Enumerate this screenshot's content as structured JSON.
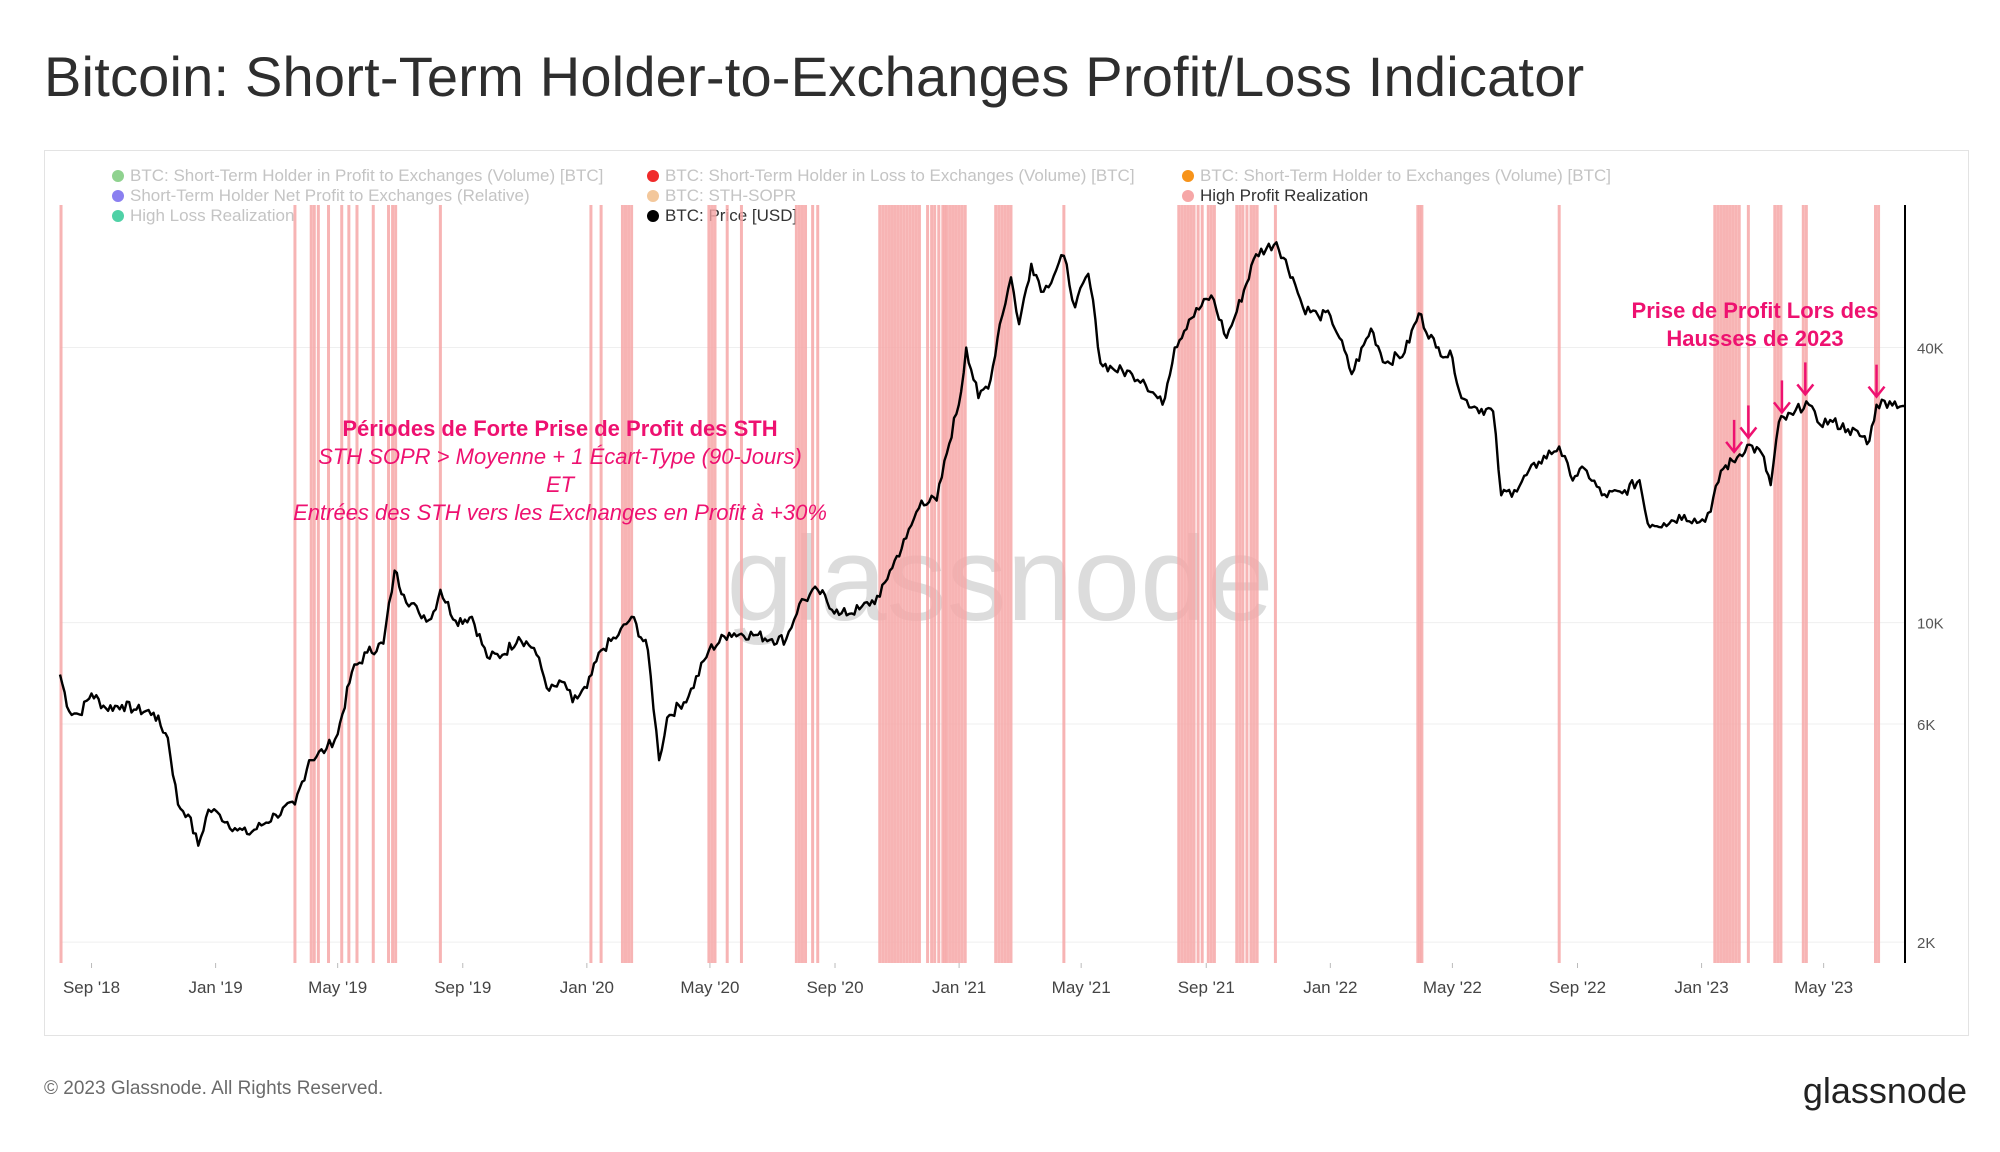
{
  "title": "Bitcoin: Short-Term Holder-to-Exchanges Profit/Loss Indicator",
  "footer": "© 2023 Glassnode. All Rights Reserved.",
  "brand": "glassnode",
  "watermark": "glassnode",
  "legend": [
    {
      "label": "BTC: Short-Term Holder in Profit to Exchanges (Volume) [BTC]",
      "color": "#8fd28f",
      "active": false
    },
    {
      "label": "BTC: Short-Term Holder in Loss to Exchanges (Volume) [BTC]",
      "color": "#f02a2a",
      "active": false
    },
    {
      "label": "BTC: Short-Term Holder to Exchanges (Volume) [BTC]",
      "color": "#f7931a",
      "active": false
    },
    {
      "label": "Short-Term Holder Net Profit to Exchanges (Relative)",
      "color": "#8a7ff0",
      "active": false
    },
    {
      "label": "BTC: STH-SOPR",
      "color": "#f3c79b",
      "active": false
    },
    {
      "label": "High Profit Realization",
      "color": "#f6a7a7",
      "active": true
    },
    {
      "label": "High Loss Realization",
      "color": "#4fd1a6",
      "active": false
    },
    {
      "label": "BTC: Price [USD]",
      "color": "#000000",
      "active": true
    }
  ],
  "annotations": {
    "left": {
      "title": "Périodes de Forte Prise de Profit des STH",
      "line1": "STH SOPR > Moyenne + 1 Écart-Type (90-Jours)",
      "line2": "ET",
      "line3": "Entrées des STH vers les Exchanges en Profit à +30%"
    },
    "right": {
      "line1": "Prise de Profit Lors des",
      "line2": "Hausses de 2023"
    }
  },
  "chart_data": {
    "type": "line",
    "x_range": [
      "2018-08-01",
      "2023-07-20"
    ],
    "x_ticks": [
      "Sep '18",
      "Jan '19",
      "May '19",
      "Sep '19",
      "Jan '20",
      "May '20",
      "Sep '20",
      "Jan '21",
      "May '21",
      "Sep '21",
      "Jan '22",
      "May '22",
      "Sep '22",
      "Jan '23",
      "May '23"
    ],
    "x_tick_dates": [
      "2018-09-01",
      "2019-01-01",
      "2019-05-01",
      "2019-09-01",
      "2020-01-01",
      "2020-05-01",
      "2020-09-01",
      "2021-01-01",
      "2021-05-01",
      "2021-09-01",
      "2022-01-01",
      "2022-05-01",
      "2022-09-01",
      "2023-01-01",
      "2023-05-01"
    ],
    "y_scale": "log",
    "y_range": [
      1800,
      80000
    ],
    "y_ticks": [
      {
        "value": 2000,
        "label": "2K"
      },
      {
        "value": 6000,
        "label": "6K"
      },
      {
        "value": 10000,
        "label": "10K"
      },
      {
        "value": 40000,
        "label": "40K"
      }
    ],
    "series": [
      {
        "name": "BTC: Price [USD]",
        "color": "#000000",
        "points": [
          [
            "2018-08-01",
            7700
          ],
          [
            "2018-08-10",
            6400
          ],
          [
            "2018-08-20",
            6300
          ],
          [
            "2018-09-01",
            7000
          ],
          [
            "2018-09-15",
            6500
          ],
          [
            "2018-10-01",
            6600
          ],
          [
            "2018-10-15",
            6450
          ],
          [
            "2018-11-01",
            6350
          ],
          [
            "2018-11-15",
            5600
          ],
          [
            "2018-11-25",
            4000
          ],
          [
            "2018-12-05",
            3800
          ],
          [
            "2018-12-15",
            3250
          ],
          [
            "2018-12-25",
            3900
          ],
          [
            "2019-01-05",
            3800
          ],
          [
            "2019-01-20",
            3550
          ],
          [
            "2019-02-01",
            3450
          ],
          [
            "2019-02-15",
            3600
          ],
          [
            "2019-03-01",
            3800
          ],
          [
            "2019-03-20",
            4000
          ],
          [
            "2019-04-03",
            5000
          ],
          [
            "2019-04-20",
            5300
          ],
          [
            "2019-05-01",
            5700
          ],
          [
            "2019-05-15",
            7800
          ],
          [
            "2019-05-30",
            8600
          ],
          [
            "2019-06-15",
            9000
          ],
          [
            "2019-06-26",
            13000
          ],
          [
            "2019-07-05",
            11500
          ],
          [
            "2019-07-20",
            10500
          ],
          [
            "2019-08-01",
            10200
          ],
          [
            "2019-08-10",
            11800
          ],
          [
            "2019-08-25",
            10100
          ],
          [
            "2019-09-10",
            10300
          ],
          [
            "2019-09-25",
            8400
          ],
          [
            "2019-10-10",
            8500
          ],
          [
            "2019-10-26",
            9300
          ],
          [
            "2019-11-10",
            8800
          ],
          [
            "2019-11-25",
            7100
          ],
          [
            "2019-12-10",
            7400
          ],
          [
            "2019-12-18",
            6700
          ],
          [
            "2020-01-01",
            7200
          ],
          [
            "2020-01-15",
            8700
          ],
          [
            "2020-02-01",
            9400
          ],
          [
            "2020-02-14",
            10300
          ],
          [
            "2020-03-01",
            8700
          ],
          [
            "2020-03-12",
            5000
          ],
          [
            "2020-03-20",
            6200
          ],
          [
            "2020-04-10",
            6900
          ],
          [
            "2020-04-30",
            8700
          ],
          [
            "2020-05-20",
            9500
          ],
          [
            "2020-06-15",
            9400
          ],
          [
            "2020-07-01",
            9200
          ],
          [
            "2020-07-15",
            9200
          ],
          [
            "2020-07-28",
            11000
          ],
          [
            "2020-08-15",
            11800
          ],
          [
            "2020-09-05",
            10400
          ],
          [
            "2020-09-25",
            10700
          ],
          [
            "2020-10-15",
            11400
          ],
          [
            "2020-10-25",
            13000
          ],
          [
            "2020-11-10",
            15300
          ],
          [
            "2020-11-25",
            18500
          ],
          [
            "2020-12-10",
            18500
          ],
          [
            "2020-12-20",
            23500
          ],
          [
            "2021-01-03",
            32000
          ],
          [
            "2021-01-08",
            40000
          ],
          [
            "2021-01-20",
            31000
          ],
          [
            "2021-02-01",
            34000
          ],
          [
            "2021-02-10",
            45000
          ],
          [
            "2021-02-21",
            57000
          ],
          [
            "2021-03-01",
            45000
          ],
          [
            "2021-03-13",
            61000
          ],
          [
            "2021-03-25",
            53000
          ],
          [
            "2021-04-14",
            63500
          ],
          [
            "2021-04-25",
            49000
          ],
          [
            "2021-05-08",
            58000
          ],
          [
            "2021-05-15",
            46000
          ],
          [
            "2021-05-20",
            37000
          ],
          [
            "2021-06-01",
            36000
          ],
          [
            "2021-06-20",
            35000
          ],
          [
            "2021-07-01",
            34000
          ],
          [
            "2021-07-20",
            30000
          ],
          [
            "2021-08-01",
            40000
          ],
          [
            "2021-08-15",
            46000
          ],
          [
            "2021-09-06",
            52000
          ],
          [
            "2021-09-21",
            42000
          ],
          [
            "2021-10-01",
            48000
          ],
          [
            "2021-10-20",
            64000
          ],
          [
            "2021-11-09",
            68000
          ],
          [
            "2021-11-25",
            57000
          ],
          [
            "2021-12-05",
            49000
          ],
          [
            "2021-12-20",
            47000
          ],
          [
            "2022-01-01",
            47000
          ],
          [
            "2022-01-10",
            42000
          ],
          [
            "2022-01-22",
            35000
          ],
          [
            "2022-02-10",
            44000
          ],
          [
            "2022-02-24",
            37000
          ],
          [
            "2022-03-15",
            39000
          ],
          [
            "2022-03-29",
            47500
          ],
          [
            "2022-04-15",
            40000
          ],
          [
            "2022-05-01",
            38000
          ],
          [
            "2022-05-10",
            31000
          ],
          [
            "2022-05-25",
            29500
          ],
          [
            "2022-06-10",
            29000
          ],
          [
            "2022-06-18",
            19000
          ],
          [
            "2022-07-01",
            19500
          ],
          [
            "2022-07-25",
            22500
          ],
          [
            "2022-08-14",
            24300
          ],
          [
            "2022-08-25",
            21000
          ],
          [
            "2022-09-10",
            21500
          ],
          [
            "2022-09-25",
            19000
          ],
          [
            "2022-10-15",
            19200
          ],
          [
            "2022-11-01",
            20500
          ],
          [
            "2022-11-09",
            16500
          ],
          [
            "2022-11-25",
            16500
          ],
          [
            "2022-12-15",
            17200
          ],
          [
            "2022-12-30",
            16600
          ],
          [
            "2023-01-10",
            17500
          ],
          [
            "2023-01-20",
            21500
          ],
          [
            "2023-02-05",
            23000
          ],
          [
            "2023-02-15",
            24500
          ],
          [
            "2023-03-01",
            23500
          ],
          [
            "2023-03-10",
            20000
          ],
          [
            "2023-03-18",
            27500
          ],
          [
            "2023-04-01",
            28500
          ],
          [
            "2023-04-14",
            30500
          ],
          [
            "2023-04-25",
            27500
          ],
          [
            "2023-05-10",
            27500
          ],
          [
            "2023-05-25",
            26500
          ],
          [
            "2023-06-15",
            25000
          ],
          [
            "2023-06-22",
            30000
          ],
          [
            "2023-07-05",
            30500
          ],
          [
            "2023-07-20",
            29800
          ]
        ]
      },
      {
        "name": "High Profit Realization",
        "color": "#f6a7a7",
        "event_dates": [
          "2018-08-02",
          "2019-03-20",
          "2019-04-05",
          "2019-04-08",
          "2019-04-12",
          "2019-04-22",
          "2019-05-05",
          "2019-05-12",
          "2019-05-20",
          "2019-06-05",
          "2019-06-20",
          "2019-06-24",
          "2019-06-27",
          "2019-08-10",
          "2020-01-05",
          "2020-01-15",
          "2020-02-05",
          "2020-02-08",
          "2020-02-11",
          "2020-02-14",
          "2020-04-30",
          "2020-05-03",
          "2020-05-06",
          "2020-05-18",
          "2020-06-01",
          "2020-07-25",
          "2020-07-28",
          "2020-07-31",
          "2020-08-03",
          "2020-08-10",
          "2020-08-15",
          "2020-10-15",
          "2020-10-18",
          "2020-10-21",
          "2020-10-24",
          "2020-10-27",
          "2020-10-30",
          "2020-11-02",
          "2020-11-05",
          "2020-11-08",
          "2020-11-11",
          "2020-11-14",
          "2020-11-17",
          "2020-11-20",
          "2020-11-23",
          "2020-12-01",
          "2020-12-05",
          "2020-12-08",
          "2020-12-12",
          "2020-12-16",
          "2020-12-18",
          "2020-12-20",
          "2020-12-23",
          "2020-12-26",
          "2020-12-29",
          "2021-01-01",
          "2021-01-04",
          "2021-01-07",
          "2021-02-06",
          "2021-02-09",
          "2021-02-12",
          "2021-02-15",
          "2021-02-18",
          "2021-02-21",
          "2021-04-14",
          "2021-08-05",
          "2021-08-08",
          "2021-08-11",
          "2021-08-14",
          "2021-08-17",
          "2021-08-20",
          "2021-08-24",
          "2021-08-28",
          "2021-09-03",
          "2021-09-06",
          "2021-09-09",
          "2021-10-01",
          "2021-10-04",
          "2021-10-07",
          "2021-10-11",
          "2021-10-15",
          "2021-10-18",
          "2021-10-21",
          "2021-11-08",
          "2022-03-28",
          "2022-03-30",
          "2022-04-01",
          "2022-08-14",
          "2023-01-14",
          "2023-01-17",
          "2023-01-20",
          "2023-01-23",
          "2023-01-26",
          "2023-01-29",
          "2023-02-01",
          "2023-02-04",
          "2023-02-07",
          "2023-02-16",
          "2023-03-14",
          "2023-03-17",
          "2023-03-20",
          "2023-04-11",
          "2023-04-14",
          "2023-06-21",
          "2023-06-24"
        ]
      }
    ],
    "arrow_dates": [
      "2023-02-02",
      "2023-02-16",
      "2023-03-21",
      "2023-04-13",
      "2023-06-22"
    ]
  }
}
